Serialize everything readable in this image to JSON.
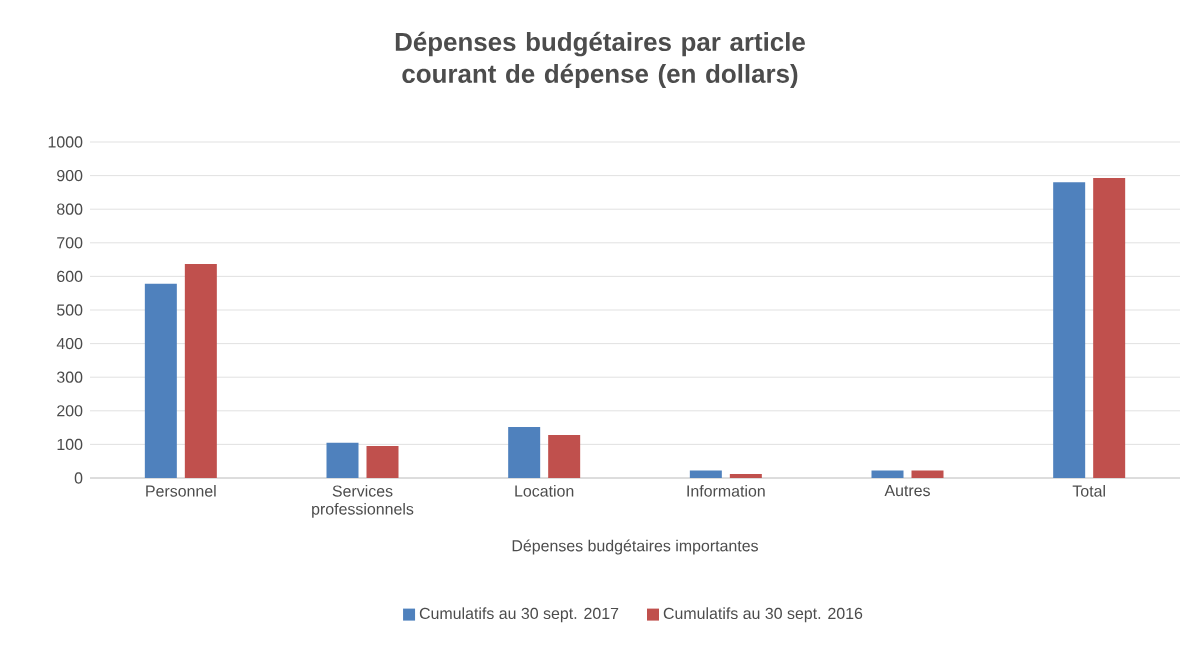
{
  "chart_data": {
    "type": "bar",
    "title": "Dépenses budgétaires par article courant de dépense (en dollars)",
    "xlabel": "Dépenses budgétaires importantes",
    "categories": [
      "Personnel",
      "Services professionnels",
      "Location",
      "Information",
      "Autres",
      "Total"
    ],
    "series": [
      {
        "name": "Cumulatifs au 30 sept. 2017",
        "color": "#4f81bd",
        "values": [
          578,
          105,
          152,
          22,
          22,
          880
        ]
      },
      {
        "name": "Cumulatifs au 30 sept. 2016",
        "color": "#c0504d",
        "values": [
          637,
          95,
          128,
          12,
          22,
          893
        ]
      }
    ],
    "ylim": [
      0,
      1000
    ],
    "yticks": [
      0,
      100,
      200,
      300,
      400,
      500,
      600,
      700,
      800,
      900,
      1000
    ],
    "grid": "y",
    "legend": "bottom"
  }
}
